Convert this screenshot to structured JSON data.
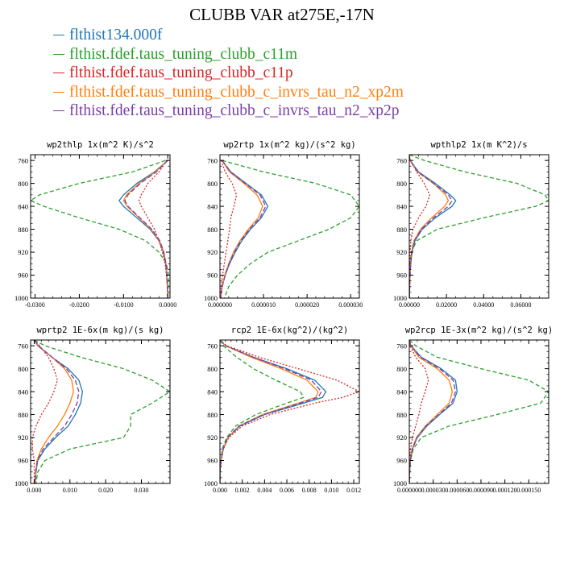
{
  "title": "CLUBB VAR at275E,-17N",
  "legend": [
    {
      "label": "flthist134.000f",
      "color": "#1f77b4"
    },
    {
      "label": "flthist.fdef.taus_tuning_clubb_c11m",
      "color": "#2ca02c"
    },
    {
      "label": "flthist.fdef.taus_tuning_clubb_c11p",
      "color": "#d62728"
    },
    {
      "label": "flthist.fdef.taus_tuning_clubb_c_invrs_tau_n2_xp2m",
      "color": "#ff7f0e"
    },
    {
      "label": "flthist.fdef.taus_tuning_clubb_c_invrs_tau_n2_xp2p",
      "color": "#7b3fa8"
    }
  ],
  "chart_data": [
    {
      "type": "line",
      "title": "wp2thlp  1x(m^2 K)/s^2",
      "xlim": [
        -0.031,
        0.0005
      ],
      "ylim": [
        1000,
        750
      ],
      "xticks": [
        -0.03,
        -0.02,
        -0.01,
        0.0
      ],
      "xtick_labels": [
        "-0.0300",
        "-0.0200",
        "-0.0100",
        "0.0000"
      ],
      "yticks": [
        760,
        800,
        840,
        880,
        920,
        960,
        1000
      ],
      "ytick_labels": [
        "760",
        "800",
        "840",
        "880",
        "920",
        "960",
        "1000"
      ],
      "x_minor": 0.002,
      "y_minor": 10,
      "levels": [
        760,
        780,
        800,
        820,
        830,
        840,
        860,
        880,
        900,
        920,
        940,
        960,
        980,
        1000
      ],
      "series": [
        {
          "values": [
            0.0,
            -0.003,
            -0.007,
            -0.01,
            -0.011,
            -0.01,
            -0.007,
            -0.004,
            -0.002,
            -0.001,
            -0.0005,
            -0.0002,
            -0.0001,
            0.0
          ],
          "color": "#1f77b4",
          "dash": "none"
        },
        {
          "values": [
            -0.0005,
            -0.008,
            -0.02,
            -0.029,
            -0.031,
            -0.028,
            -0.02,
            -0.011,
            -0.005,
            -0.002,
            -0.0003,
            0.0002,
            0.0001,
            0.0
          ],
          "color": "#2ca02c",
          "dash": "5,3"
        },
        {
          "values": [
            -0.0002,
            -0.002,
            -0.0045,
            -0.006,
            -0.0065,
            -0.006,
            -0.0045,
            -0.003,
            -0.002,
            -0.0012,
            -0.0006,
            -0.0003,
            -0.0001,
            0.0
          ],
          "color": "#d62728",
          "dash": "2,2"
        },
        {
          "values": [
            0.0,
            -0.0028,
            -0.0065,
            -0.0093,
            -0.01,
            -0.0092,
            -0.0065,
            -0.0038,
            -0.0019,
            -0.0009,
            -0.0004,
            -0.0002,
            -0.0001,
            0.0
          ],
          "color": "#ff7f0e",
          "dash": "none"
        },
        {
          "values": [
            0.0,
            -0.0026,
            -0.0062,
            -0.009,
            -0.0097,
            -0.009,
            -0.0063,
            -0.0036,
            -0.0018,
            -0.0009,
            -0.0004,
            -0.0002,
            -0.0001,
            0.0
          ],
          "color": "#7b3fa8",
          "dash": "6,3"
        }
      ]
    },
    {
      "type": "line",
      "title": "wp2rtp  1x(m^2 kg)/(s^2 kg)",
      "xlim": [
        0,
        3.2e-05
      ],
      "ylim": [
        1000,
        750
      ],
      "xticks": [
        0,
        1e-05,
        2e-05,
        3e-05
      ],
      "xtick_labels": [
        "0.000000",
        "0.000010",
        "0.000020",
        "0.000030"
      ],
      "yticks": [
        760,
        800,
        840,
        880,
        920,
        960,
        1000
      ],
      "ytick_labels": [
        "760",
        "800",
        "840",
        "880",
        "920",
        "960",
        "1000"
      ],
      "x_minor": 2e-06,
      "y_minor": 10,
      "levels": [
        760,
        780,
        800,
        820,
        840,
        860,
        880,
        900,
        920,
        940,
        960,
        980,
        1000
      ],
      "series": [
        {
          "values": [
            5e-07,
            2.5e-06,
            6e-06,
            9.5e-06,
            1.1e-05,
            9.5e-06,
            7e-06,
            5e-06,
            3.5e-06,
            2.2e-06,
            1.2e-06,
            5e-07,
            2e-07
          ],
          "color": "#1f77b4",
          "dash": "none"
        },
        {
          "values": [
            5e-07,
            1e-05,
            2.2e-05,
            3e-05,
            3.2e-05,
            3e-05,
            2.5e-05,
            1.8e-05,
            1.1e-05,
            7e-06,
            4e-06,
            2e-06,
            1e-06
          ],
          "color": "#2ca02c",
          "dash": "5,3"
        },
        {
          "values": [
            3e-07,
            1.2e-06,
            2.8e-06,
            3.8e-06,
            3.2e-06,
            2.5e-06,
            2.2e-06,
            1.8e-06,
            1.4e-06,
            1e-06,
            6e-07,
            3e-07,
            1e-07
          ],
          "color": "#d62728",
          "dash": "2,2"
        },
        {
          "values": [
            5e-07,
            2.2e-06,
            5.5e-06,
            8.5e-06,
            9.8e-06,
            8.8e-06,
            6.5e-06,
            4.6e-06,
            3.1e-06,
            2e-06,
            1.1e-06,
            5e-07,
            2e-07
          ],
          "color": "#ff7f0e",
          "dash": "none"
        },
        {
          "values": [
            5e-07,
            2.4e-06,
            5.8e-06,
            9.2e-06,
            1.05e-05,
            9.2e-06,
            6.8e-06,
            4.8e-06,
            3.3e-06,
            2.1e-06,
            1.2e-06,
            5e-07,
            2e-07
          ],
          "color": "#7b3fa8",
          "dash": "6,3"
        }
      ]
    },
    {
      "type": "line",
      "title": "wpthlp2  1x(m K^2)/s",
      "xlim": [
        0,
        0.075
      ],
      "ylim": [
        1000,
        750
      ],
      "xticks": [
        0,
        0.02,
        0.04,
        0.06
      ],
      "xtick_labels": [
        "0.00000",
        "0.02000",
        "0.04000",
        "0.06000"
      ],
      "yticks": [
        760,
        800,
        840,
        880,
        920,
        960,
        1000
      ],
      "ytick_labels": [
        "760",
        "800",
        "840",
        "880",
        "920",
        "960",
        "1000"
      ],
      "x_minor": 0.005,
      "y_minor": 10,
      "levels": [
        750,
        760,
        780,
        800,
        820,
        830,
        840,
        860,
        880,
        900,
        920,
        940,
        960,
        980,
        1000
      ],
      "series": [
        {
          "values": [
            0.0,
            0.0005,
            0.005,
            0.014,
            0.022,
            0.025,
            0.023,
            0.014,
            0.007,
            0.003,
            0.0015,
            0.0008,
            0.0004,
            0.0002,
            0.0001
          ],
          "color": "#1f77b4",
          "dash": "none"
        },
        {
          "values": [
            0.0,
            0.008,
            0.03,
            0.058,
            0.073,
            0.075,
            0.068,
            0.04,
            0.015,
            0.004,
            0.001,
            0.0005,
            0.0003,
            0.0002,
            0.0001
          ],
          "color": "#2ca02c",
          "dash": "5,3"
        },
        {
          "values": [
            0.0,
            0.0005,
            0.004,
            0.008,
            0.011,
            0.01,
            0.009,
            0.005,
            0.002,
            0.0008,
            0.0004,
            0.0002,
            0.0001,
            0.0001,
            0.0
          ],
          "color": "#d62728",
          "dash": "2,2"
        },
        {
          "values": [
            0.0,
            0.0004,
            0.0045,
            0.013,
            0.0195,
            0.021,
            0.019,
            0.012,
            0.006,
            0.0025,
            0.0012,
            0.0007,
            0.0004,
            0.0002,
            0.0001
          ],
          "color": "#ff7f0e",
          "dash": "none"
        },
        {
          "values": [
            0.0,
            0.0004,
            0.0045,
            0.013,
            0.021,
            0.023,
            0.021,
            0.013,
            0.0065,
            0.0028,
            0.0013,
            0.0007,
            0.0004,
            0.0002,
            0.0001
          ],
          "color": "#7b3fa8",
          "dash": "6,3"
        }
      ]
    },
    {
      "type": "line",
      "title": "wprtp2  1E-6x(m kg)/(s kg)",
      "xlim": [
        -0.001,
        0.038
      ],
      "ylim": [
        1000,
        750
      ],
      "xticks": [
        0,
        0.01,
        0.02,
        0.03
      ],
      "xtick_labels": [
        "0.000",
        "0.010",
        "0.020",
        "0.030"
      ],
      "yticks": [
        760,
        800,
        840,
        880,
        920,
        960,
        1000
      ],
      "ytick_labels": [
        "760",
        "800",
        "840",
        "880",
        "920",
        "960",
        "1000"
      ],
      "x_minor": 0.002,
      "y_minor": 10,
      "levels": [
        750,
        760,
        780,
        800,
        820,
        840,
        860,
        880,
        900,
        920,
        940,
        960,
        980,
        1000
      ],
      "series": [
        {
          "values": [
            0.0,
            0.001,
            0.005,
            0.0095,
            0.0125,
            0.0135,
            0.013,
            0.0115,
            0.0095,
            0.006,
            0.003,
            0.001,
            0.0005,
            0.0003
          ],
          "color": "#1f77b4",
          "dash": "none"
        },
        {
          "values": [
            0.0,
            0.003,
            0.013,
            0.025,
            0.033,
            0.038,
            0.033,
            0.027,
            0.027,
            0.025,
            0.01,
            0.003,
            0.001,
            0.0005
          ],
          "color": "#2ca02c",
          "dash": "5,3"
        },
        {
          "values": [
            0.0,
            0.0015,
            0.004,
            0.0055,
            0.0065,
            0.0055,
            0.004,
            0.002,
            0.0005,
            -0.0005,
            -0.0005,
            0.0,
            0.0,
            0.0
          ],
          "color": "#d62728",
          "dash": "2,2"
        },
        {
          "values": [
            0.0,
            0.0012,
            0.005,
            0.0085,
            0.0105,
            0.011,
            0.01,
            0.0085,
            0.0065,
            0.004,
            0.002,
            0.0008,
            0.0004,
            0.0002
          ],
          "color": "#ff7f0e",
          "dash": "none"
        },
        {
          "values": [
            0.0,
            0.0012,
            0.005,
            0.009,
            0.0115,
            0.0125,
            0.012,
            0.0105,
            0.0085,
            0.0055,
            0.0025,
            0.0009,
            0.0004,
            0.0002
          ],
          "color": "#7b3fa8",
          "dash": "6,3"
        }
      ]
    },
    {
      "type": "line",
      "title": "rcp2  1E-6x(kg^2)/(kg^2)",
      "xlim": [
        0,
        0.0125
      ],
      "ylim": [
        1000,
        750
      ],
      "xticks": [
        0,
        0.002,
        0.004,
        0.006,
        0.008,
        0.01,
        0.012
      ],
      "xtick_labels": [
        "0.000",
        "0.002",
        "0.004",
        "0.006",
        "0.008",
        "0.010",
        "0.012"
      ],
      "yticks": [
        760,
        800,
        840,
        880,
        920,
        960,
        1000
      ],
      "ytick_labels": [
        "760",
        "800",
        "840",
        "880",
        "920",
        "960",
        "1000"
      ],
      "x_minor": 0.0005,
      "y_minor": 10,
      "levels": [
        750,
        760,
        780,
        800,
        820,
        840,
        850,
        860,
        880,
        900,
        920,
        940,
        960,
        980,
        1000
      ],
      "series": [
        {
          "values": [
            0.0,
            0.0005,
            0.003,
            0.006,
            0.0085,
            0.0095,
            0.0092,
            0.0075,
            0.004,
            0.0018,
            0.0007,
            0.0003,
            0.0001,
            0.0,
            0.0
          ],
          "color": "#1f77b4",
          "dash": "none"
        },
        {
          "values": [
            0.0,
            0.0003,
            0.0015,
            0.003,
            0.005,
            0.0072,
            0.0075,
            0.006,
            0.0032,
            0.0014,
            0.0006,
            0.0002,
            0.0001,
            0.0,
            0.0
          ],
          "color": "#2ca02c",
          "dash": "5,3"
        },
        {
          "values": [
            0.0,
            0.0006,
            0.0035,
            0.007,
            0.0105,
            0.0125,
            0.011,
            0.0085,
            0.0045,
            0.002,
            0.0008,
            0.0003,
            0.0001,
            0.0,
            0.0
          ],
          "color": "#d62728",
          "dash": "2,2"
        },
        {
          "values": [
            0.0,
            0.0005,
            0.0028,
            0.0055,
            0.0078,
            0.0088,
            0.0086,
            0.007,
            0.0038,
            0.0017,
            0.0007,
            0.0003,
            0.0001,
            0.0,
            0.0
          ],
          "color": "#ff7f0e",
          "dash": "none"
        },
        {
          "values": [
            0.0,
            0.0005,
            0.003,
            0.0058,
            0.0082,
            0.0091,
            0.0088,
            0.0072,
            0.0039,
            0.0017,
            0.0007,
            0.0003,
            0.0001,
            0.0,
            0.0
          ],
          "color": "#7b3fa8",
          "dash": "6,3"
        }
      ]
    },
    {
      "type": "line",
      "title": "wp2rcp  1E-3x(m^2 kg)/(s^2 kg)",
      "xlim": [
        0,
        0.000175
      ],
      "ylim": [
        1000,
        750
      ],
      "xticks": [
        0,
        3e-05,
        6e-05,
        9e-05,
        0.00012,
        0.00015
      ],
      "xtick_labels": [
        "0.000000",
        "0.000030",
        "0.000060",
        "0.000090",
        "0.000120",
        "0.000150"
      ],
      "yticks": [
        760,
        800,
        840,
        880,
        920,
        960,
        1000
      ],
      "ytick_labels": [
        "760",
        "800",
        "840",
        "880",
        "920",
        "960",
        "1000"
      ],
      "x_minor": 1e-05,
      "y_minor": 10,
      "levels": [
        750,
        760,
        780,
        800,
        820,
        840,
        860,
        880,
        900,
        920,
        940,
        960,
        980,
        1000
      ],
      "series": [
        {
          "values": [
            0.0,
            2e-06,
            1.5e-05,
            4e-05,
            5.8e-05,
            6e-05,
            5.5e-05,
            3.8e-05,
            2.2e-05,
            1e-05,
            4e-06,
            1.5e-06,
            5e-07,
            0.0
          ],
          "color": "#1f77b4",
          "dash": "none"
        },
        {
          "values": [
            0.0,
            8e-06,
            3.5e-05,
            9e-05,
            0.00015,
            0.000175,
            0.000165,
            0.00011,
            5e-05,
            1.5e-05,
            5e-06,
            1.5e-06,
            5e-07,
            0.0
          ],
          "color": "#2ca02c",
          "dash": "5,3"
        },
        {
          "values": [
            0.0,
            1e-06,
            8e-06,
            2e-05,
            2.4e-05,
            2e-05,
            1.5e-05,
            1.2e-05,
            8e-06,
            4e-06,
            1.5e-06,
            5e-07,
            0.0,
            0.0
          ],
          "color": "#d62728",
          "dash": "2,2"
        },
        {
          "values": [
            0.0,
            2e-06,
            1.2e-05,
            3.5e-05,
            5e-05,
            5.4e-05,
            5e-05,
            3.5e-05,
            2e-05,
            9e-06,
            3.5e-06,
            1.2e-06,
            4e-07,
            0.0
          ],
          "color": "#ff7f0e",
          "dash": "none"
        },
        {
          "values": [
            0.0,
            2e-06,
            1.4e-05,
            3.8e-05,
            5.5e-05,
            5.8e-05,
            5.3e-05,
            3.7e-05,
            2.1e-05,
            9.5e-06,
            3.8e-06,
            1.3e-06,
            4e-07,
            0.0
          ],
          "color": "#7b3fa8",
          "dash": "6,3"
        }
      ]
    }
  ]
}
